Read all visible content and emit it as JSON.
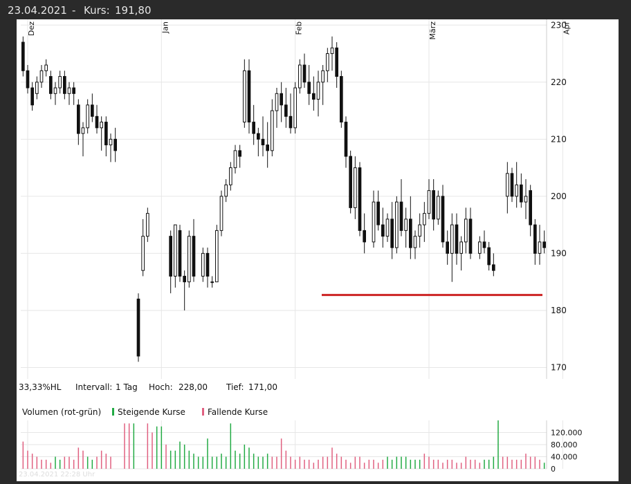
{
  "header": {
    "date": "23.04.2021",
    "separator": "-",
    "kurs_label": "Kurs:",
    "kurs_value": "191,80"
  },
  "stats": {
    "scale": "33,33%HL",
    "interval_label": "Intervall:",
    "interval_value": "1 Tag",
    "high_label": "Hoch:",
    "high_value": "228,00",
    "low_label": "Tief:",
    "low_value": "171,00"
  },
  "volume_legend": {
    "title": "Volumen (rot-grün)",
    "rising": "Steigende Kurse",
    "falling": "Fallende Kurse"
  },
  "watermark": "23.04.2021 22:28 Uhr",
  "colors": {
    "rising": "#22aa44",
    "falling": "#e06080",
    "support_line": "#cc2222",
    "grid": "#e6e6e6",
    "candle": "#111111"
  },
  "chart_data": [
    {
      "type": "candlestick",
      "ylim": [
        168,
        231
      ],
      "y_ticks": [
        170,
        180,
        190,
        200,
        210,
        220,
        230
      ],
      "x_tick_labels": [
        "Dez",
        "Jan",
        "Feb",
        "März",
        "Apr"
      ],
      "x_tick_index": [
        1,
        30,
        59,
        88,
        117
      ],
      "grid": true,
      "support_level": 182.7,
      "candles": [
        [
          227,
          228,
          221,
          222
        ],
        [
          222,
          223,
          218,
          219
        ],
        [
          219,
          220,
          215,
          216
        ],
        [
          218,
          221,
          217,
          220
        ],
        [
          220,
          223,
          219,
          222
        ],
        [
          222,
          224,
          221,
          223
        ],
        [
          221,
          222,
          217,
          218
        ],
        [
          218,
          220,
          216,
          219
        ],
        [
          219,
          222,
          218,
          221
        ],
        [
          221,
          222,
          217,
          218
        ],
        [
          218,
          220,
          216,
          219
        ],
        [
          219,
          220,
          216,
          218
        ],
        [
          216,
          217,
          209,
          211
        ],
        [
          211,
          213,
          207,
          212
        ],
        [
          212,
          217,
          211,
          216
        ],
        [
          216,
          218,
          213,
          214
        ],
        [
          214,
          216,
          211,
          212
        ],
        [
          212,
          214,
          208,
          213
        ],
        [
          213,
          214,
          207,
          209
        ],
        [
          209,
          211,
          206,
          210
        ],
        [
          210,
          212,
          206,
          208
        ],
        [
          null,
          null,
          null,
          null
        ],
        [
          null,
          null,
          null,
          null
        ],
        [
          null,
          null,
          null,
          null
        ],
        [
          null,
          null,
          null,
          null
        ],
        [
          182,
          183,
          171,
          172
        ],
        [
          187,
          196,
          186,
          193
        ],
        [
          193,
          198,
          192,
          197
        ],
        [
          null,
          null,
          null,
          null
        ],
        [
          null,
          null,
          null,
          null
        ],
        [
          null,
          null,
          null,
          null
        ],
        [
          null,
          null,
          null,
          null
        ],
        [
          193,
          194,
          183,
          186
        ],
        [
          186,
          194,
          184,
          195
        ],
        [
          194,
          195,
          185,
          186
        ],
        [
          186,
          187,
          180,
          185
        ],
        [
          185,
          194,
          184,
          193
        ],
        [
          193,
          196,
          185,
          186
        ],
        [
          null,
          null,
          null,
          null
        ],
        [
          186,
          191,
          185,
          190
        ],
        [
          190,
          191,
          184,
          186
        ],
        [
          185,
          186,
          184,
          185
        ],
        [
          185,
          195,
          186,
          194
        ],
        [
          194,
          201,
          193,
          200
        ],
        [
          200,
          203,
          199,
          202
        ],
        [
          202,
          206,
          201,
          205
        ],
        [
          205,
          209,
          204,
          208
        ],
        [
          208,
          209,
          205,
          207
        ],
        [
          213,
          224,
          212,
          222
        ],
        [
          222,
          224,
          211,
          213
        ],
        [
          213,
          216,
          209,
          211
        ],
        [
          211,
          212,
          207,
          210
        ],
        [
          210,
          214,
          207,
          209
        ],
        [
          209,
          213,
          205,
          208
        ],
        [
          208,
          217,
          207,
          215
        ],
        [
          215,
          219,
          212,
          218
        ],
        [
          218,
          220,
          213,
          216
        ],
        [
          216,
          219,
          212,
          214
        ],
        [
          214,
          218,
          211,
          212
        ],
        [
          212,
          220,
          211,
          219
        ],
        [
          219,
          224,
          218,
          223
        ],
        [
          223,
          225,
          219,
          220
        ],
        [
          220,
          223,
          216,
          218
        ],
        [
          218,
          221,
          215,
          217
        ],
        [
          217,
          222,
          214,
          220
        ],
        [
          220,
          223,
          216,
          222
        ],
        [
          222,
          226,
          220,
          225
        ],
        [
          225,
          228,
          222,
          226
        ],
        [
          226,
          227,
          219,
          221
        ],
        [
          221,
          222,
          212,
          213
        ],
        [
          213,
          214,
          205,
          207
        ],
        [
          207,
          208,
          197,
          198
        ],
        [
          198,
          207,
          196,
          205
        ],
        [
          205,
          206,
          193,
          194
        ],
        [
          194,
          197,
          190,
          192
        ],
        [
          null,
          null,
          null,
          null
        ],
        [
          192,
          201,
          191,
          199
        ],
        [
          199,
          201,
          194,
          195
        ],
        [
          195,
          198,
          191,
          193
        ],
        [
          193,
          197,
          192,
          196
        ],
        [
          196,
          199,
          189,
          191
        ],
        [
          191,
          200,
          190,
          199
        ],
        [
          199,
          203,
          193,
          194
        ],
        [
          194,
          198,
          191,
          196
        ],
        [
          196,
          200,
          189,
          191
        ],
        [
          191,
          194,
          189,
          193
        ],
        [
          193,
          197,
          191,
          195
        ],
        [
          195,
          199,
          192,
          197
        ],
        [
          197,
          203,
          196,
          201
        ],
        [
          201,
          203,
          194,
          196
        ],
        [
          196,
          201,
          195,
          200
        ],
        [
          200,
          202,
          191,
          192
        ],
        [
          192,
          194,
          188,
          190
        ],
        [
          190,
          197,
          185,
          195
        ],
        [
          195,
          197,
          188,
          190
        ],
        [
          190,
          193,
          187,
          192
        ],
        [
          192,
          198,
          190,
          196
        ],
        [
          196,
          198,
          189,
          190
        ],
        [
          null,
          null,
          null,
          null
        ],
        [
          190,
          193,
          189,
          192
        ],
        [
          192,
          194,
          190,
          191
        ],
        [
          191,
          192,
          187,
          188
        ],
        [
          188,
          190,
          186,
          187
        ],
        [
          null,
          null,
          null,
          null
        ],
        [
          null,
          null,
          null,
          null
        ],
        [
          200,
          206,
          197,
          204
        ],
        [
          204,
          205,
          199,
          200
        ],
        [
          200,
          206,
          198,
          202
        ],
        [
          202,
          204,
          198,
          199
        ],
        [
          199,
          203,
          196,
          200
        ],
        [
          201,
          202,
          193,
          195
        ],
        [
          195,
          196,
          188,
          190
        ],
        [
          190,
          195,
          188,
          192
        ],
        [
          192,
          194,
          190,
          191
        ]
      ],
      "volume": {
        "y_ticks": [
          0,
          40000,
          80000,
          120000
        ],
        "y_tick_labels": [
          "0",
          "40.000",
          "80.000",
          "120.000"
        ],
        "ylim": [
          0,
          160000
        ],
        "bars": [
          [
            90000,
            "r"
          ],
          [
            60000,
            "r"
          ],
          [
            50000,
            "r"
          ],
          [
            40000,
            "r"
          ],
          [
            30000,
            "r"
          ],
          [
            30000,
            "r"
          ],
          [
            20000,
            "r"
          ],
          [
            40000,
            "g"
          ],
          [
            30000,
            "g"
          ],
          [
            40000,
            "r"
          ],
          [
            40000,
            "r"
          ],
          [
            30000,
            "r"
          ],
          [
            70000,
            "r"
          ],
          [
            60000,
            "r"
          ],
          [
            40000,
            "g"
          ],
          [
            30000,
            "g"
          ],
          [
            40000,
            "r"
          ],
          [
            60000,
            "r"
          ],
          [
            50000,
            "r"
          ],
          [
            40000,
            "r"
          ],
          [
            null,
            "r"
          ],
          [
            null,
            "r"
          ],
          [
            150000,
            "r"
          ],
          [
            150000,
            "r"
          ],
          [
            150000,
            "g"
          ],
          [
            null,
            "g"
          ],
          [
            null,
            "r"
          ],
          [
            150000,
            "r"
          ],
          [
            120000,
            "r"
          ],
          [
            140000,
            "g"
          ],
          [
            140000,
            "g"
          ],
          [
            80000,
            "r"
          ],
          [
            60000,
            "g"
          ],
          [
            60000,
            "g"
          ],
          [
            90000,
            "g"
          ],
          [
            80000,
            "g"
          ],
          [
            60000,
            "g"
          ],
          [
            50000,
            "g"
          ],
          [
            40000,
            "g"
          ],
          [
            40000,
            "g"
          ],
          [
            100000,
            "g"
          ],
          [
            40000,
            "g"
          ],
          [
            40000,
            "g"
          ],
          [
            50000,
            "g"
          ],
          [
            40000,
            "g"
          ],
          [
            150000,
            "g"
          ],
          [
            60000,
            "g"
          ],
          [
            50000,
            "g"
          ],
          [
            80000,
            "g"
          ],
          [
            70000,
            "g"
          ],
          [
            50000,
            "g"
          ],
          [
            40000,
            "g"
          ],
          [
            40000,
            "g"
          ],
          [
            50000,
            "g"
          ],
          [
            40000,
            "r"
          ],
          [
            40000,
            "r"
          ],
          [
            100000,
            "r"
          ],
          [
            60000,
            "r"
          ],
          [
            40000,
            "r"
          ],
          [
            30000,
            "r"
          ],
          [
            40000,
            "r"
          ],
          [
            30000,
            "r"
          ],
          [
            30000,
            "r"
          ],
          [
            20000,
            "r"
          ],
          [
            30000,
            "r"
          ],
          [
            40000,
            "r"
          ],
          [
            40000,
            "r"
          ],
          [
            70000,
            "r"
          ],
          [
            50000,
            "r"
          ],
          [
            40000,
            "r"
          ],
          [
            30000,
            "r"
          ],
          [
            20000,
            "r"
          ],
          [
            40000,
            "r"
          ],
          [
            40000,
            "r"
          ],
          [
            20000,
            "r"
          ],
          [
            30000,
            "r"
          ],
          [
            30000,
            "r"
          ],
          [
            20000,
            "r"
          ],
          [
            30000,
            "r"
          ],
          [
            40000,
            "g"
          ],
          [
            30000,
            "g"
          ],
          [
            40000,
            "g"
          ],
          [
            40000,
            "g"
          ],
          [
            40000,
            "g"
          ],
          [
            30000,
            "g"
          ],
          [
            30000,
            "g"
          ],
          [
            30000,
            "g"
          ],
          [
            50000,
            "r"
          ],
          [
            40000,
            "r"
          ],
          [
            30000,
            "r"
          ],
          [
            30000,
            "r"
          ],
          [
            20000,
            "r"
          ],
          [
            30000,
            "r"
          ],
          [
            30000,
            "r"
          ],
          [
            20000,
            "r"
          ],
          [
            20000,
            "r"
          ],
          [
            40000,
            "r"
          ],
          [
            30000,
            "r"
          ],
          [
            30000,
            "r"
          ],
          [
            20000,
            "r"
          ],
          [
            30000,
            "g"
          ],
          [
            30000,
            "g"
          ],
          [
            40000,
            "g"
          ],
          [
            160000,
            "g"
          ],
          [
            40000,
            "r"
          ],
          [
            40000,
            "r"
          ],
          [
            30000,
            "r"
          ],
          [
            30000,
            "r"
          ],
          [
            30000,
            "r"
          ],
          [
            50000,
            "r"
          ],
          [
            40000,
            "r"
          ],
          [
            40000,
            "r"
          ],
          [
            30000,
            "r"
          ],
          [
            20000,
            "g"
          ]
        ]
      }
    }
  ]
}
